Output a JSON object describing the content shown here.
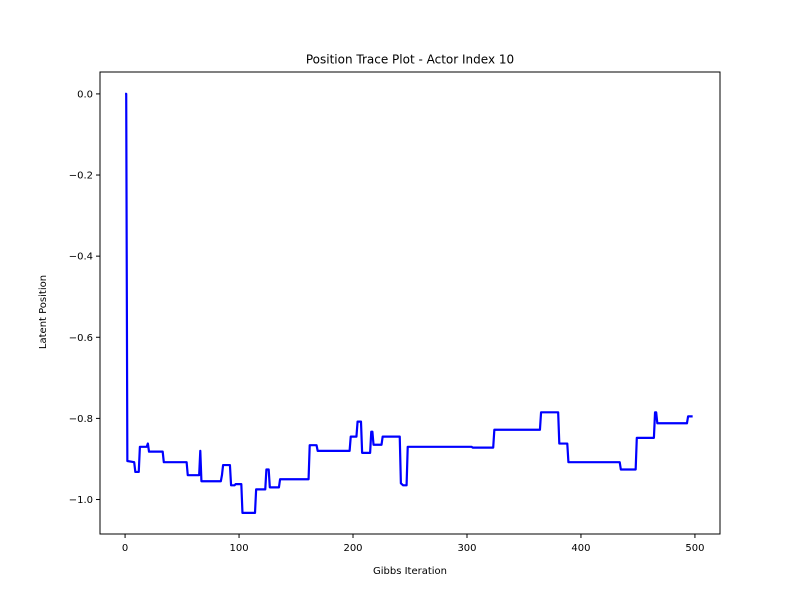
{
  "chart_data": {
    "type": "line",
    "title": "Position Trace Plot - Actor Index 10",
    "xlabel": "Gibbs Iteration",
    "ylabel": "Latent Position",
    "xlim": [
      -22,
      522
    ],
    "ylim": [
      -1.085,
      0.054
    ],
    "xticks": [
      0,
      100,
      200,
      300,
      400,
      500
    ],
    "yticks": [
      0.0,
      -0.2,
      -0.4,
      -0.6,
      -0.8,
      -1.0
    ],
    "xtick_labels": [
      "0",
      "100",
      "200",
      "300",
      "400",
      "500"
    ],
    "ytick_labels": [
      "0.0",
      "−0.2",
      "−0.4",
      "−0.6",
      "−0.8",
      "−1.0"
    ],
    "grid": false,
    "line_color": "#0000ff",
    "series": [
      {
        "x": [
          0,
          1,
          2,
          8,
          9,
          12,
          13,
          19,
          20,
          21,
          33,
          34,
          54,
          55,
          65,
          66,
          67,
          84,
          85,
          86,
          92,
          93,
          96,
          97,
          102,
          103,
          114,
          115,
          123,
          124,
          126,
          127,
          135,
          136,
          161,
          162,
          168,
          169,
          197,
          198,
          203,
          204,
          207,
          208,
          215,
          216,
          217,
          218,
          225,
          226,
          241,
          242,
          244,
          245,
          247,
          248,
          304,
          305,
          323,
          324,
          364,
          365,
          380,
          381,
          388,
          389,
          434,
          435,
          448,
          449,
          464,
          465,
          466,
          467,
          493,
          494,
          498
        ],
        "y": [
          0.0,
          0.0,
          -0.905,
          -0.908,
          -0.932,
          -0.932,
          -0.87,
          -0.87,
          -0.862,
          -0.882,
          -0.882,
          -0.908,
          -0.908,
          -0.94,
          -0.94,
          -0.88,
          -0.955,
          -0.955,
          -0.94,
          -0.915,
          -0.915,
          -0.965,
          -0.965,
          -0.962,
          -0.962,
          -1.033,
          -1.033,
          -0.975,
          -0.975,
          -0.926,
          -0.926,
          -0.97,
          -0.97,
          -0.95,
          -0.95,
          -0.866,
          -0.866,
          -0.88,
          -0.88,
          -0.845,
          -0.845,
          -0.808,
          -0.808,
          -0.885,
          -0.885,
          -0.833,
          -0.833,
          -0.865,
          -0.865,
          -0.845,
          -0.845,
          -0.96,
          -0.965,
          -0.965,
          -0.965,
          -0.87,
          -0.87,
          -0.872,
          -0.872,
          -0.828,
          -0.828,
          -0.785,
          -0.785,
          -0.862,
          -0.862,
          -0.908,
          -0.908,
          -0.926,
          -0.926,
          -0.848,
          -0.848,
          -0.785,
          -0.785,
          -0.812,
          -0.812,
          -0.795,
          -0.795
        ]
      }
    ]
  }
}
